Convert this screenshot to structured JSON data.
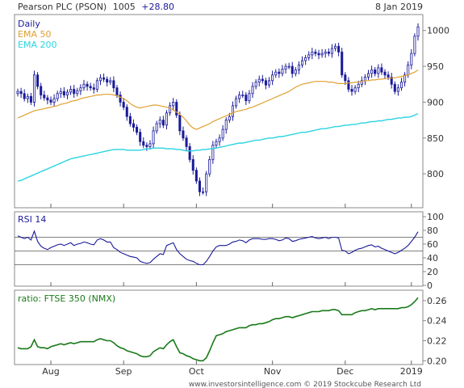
{
  "header": {
    "title": "Pearson PLC (PSON)",
    "price": "1005",
    "change": "+28.80",
    "date": "8 Jan 2019"
  },
  "footer": {
    "credit": "www.investorsintelligence.com  © 2019 Stockcube Research Ltd"
  },
  "colors": {
    "price": "#1a1a9a",
    "ema50": "#e0a030",
    "ema200": "#2ad4e0",
    "rsi": "#1a1a9a",
    "ratio": "#1a7a1a",
    "ratio_label": "#1a7a1a",
    "change": "#1a1a9a"
  },
  "chart_data": [
    {
      "type": "candlestick",
      "legend": [
        "Daily",
        "EMA 50",
        "EMA 200"
      ],
      "x_tick_labels": [
        "Aug",
        "Sep",
        "Oct",
        "Nov",
        "Dec",
        "2019"
      ],
      "x_tick_indices": [
        10,
        32,
        54,
        77,
        99,
        119
      ],
      "ylim": [
        755,
        1020
      ],
      "yticks": [
        800,
        850,
        900,
        950,
        1000
      ],
      "grid": false,
      "legend_position": "top-left",
      "close": [
        915,
        912,
        905,
        908,
        900,
        938,
        922,
        910,
        906,
        903,
        900,
        905,
        912,
        915,
        910,
        914,
        918,
        912,
        916,
        920,
        925,
        922,
        920,
        918,
        930,
        934,
        932,
        928,
        930,
        920,
        910,
        900,
        893,
        880,
        870,
        865,
        858,
        845,
        840,
        838,
        842,
        860,
        870,
        875,
        868,
        885,
        895,
        900,
        882,
        860,
        850,
        838,
        820,
        805,
        790,
        775,
        775,
        800,
        820,
        840,
        845,
        850,
        862,
        875,
        880,
        895,
        905,
        910,
        910,
        902,
        912,
        922,
        928,
        932,
        930,
        924,
        930,
        938,
        942,
        940,
        946,
        950,
        950,
        940,
        945,
        952,
        958,
        962,
        966,
        970,
        968,
        966,
        968,
        970,
        968,
        975,
        978,
        970,
        938,
        930,
        918,
        915,
        920,
        925,
        930,
        935,
        940,
        945,
        940,
        948,
        942,
        938,
        935,
        925,
        915,
        920,
        928,
        938,
        952,
        968,
        992,
        1005
      ],
      "ema50": [
        878,
        880,
        882,
        884,
        886,
        888,
        889,
        890,
        891,
        892,
        893,
        894,
        895,
        897,
        898,
        899,
        901,
        902,
        903,
        905,
        906,
        907,
        908,
        909,
        910,
        910,
        911,
        911,
        911,
        910,
        909,
        907,
        905,
        902,
        898,
        895,
        893,
        892,
        893,
        894,
        895,
        896,
        896,
        895,
        894,
        893,
        892,
        889,
        886,
        883,
        879,
        874,
        868,
        864,
        862,
        864,
        866,
        868,
        870,
        873,
        875,
        877,
        879,
        881,
        883,
        885,
        887,
        888,
        889,
        890,
        892,
        893,
        895,
        897,
        899,
        901,
        903,
        905,
        907,
        909,
        911,
        913,
        915,
        918,
        921,
        923,
        925,
        926,
        927,
        928,
        929,
        929,
        929,
        929,
        928,
        928,
        927,
        926,
        926,
        926,
        927,
        927,
        928,
        928,
        929,
        930,
        930,
        931,
        931,
        932,
        932,
        933,
        933,
        934,
        934,
        935,
        936,
        937,
        938,
        940,
        942,
        945
      ],
      "ema200": [
        790,
        791,
        793,
        795,
        797,
        799,
        801,
        803,
        805,
        807,
        809,
        811,
        813,
        815,
        817,
        819,
        821,
        822,
        823,
        824,
        825,
        826,
        827,
        828,
        829,
        830,
        831,
        832,
        833,
        834,
        834,
        834,
        834,
        833,
        833,
        833,
        833,
        833,
        834,
        835,
        835,
        836,
        836,
        836,
        836,
        835,
        835,
        835,
        834,
        834,
        833,
        832,
        832,
        832,
        833,
        833,
        834,
        834,
        835,
        835,
        836,
        837,
        838,
        839,
        840,
        841,
        842,
        843,
        843,
        844,
        845,
        846,
        847,
        847,
        848,
        849,
        850,
        850,
        851,
        852,
        852,
        853,
        854,
        855,
        856,
        857,
        858,
        858,
        859,
        860,
        861,
        862,
        863,
        863,
        864,
        865,
        866,
        866,
        867,
        868,
        868,
        869,
        869,
        870,
        871,
        871,
        872,
        873,
        873,
        874,
        874,
        875,
        876,
        876,
        877,
        878,
        878,
        879,
        879,
        880,
        882,
        884
      ]
    },
    {
      "type": "line",
      "title": "RSI 14",
      "ylim": [
        0,
        100
      ],
      "yticks": [
        0,
        20,
        40,
        60,
        80,
        100
      ],
      "reference_lines": [
        30,
        50,
        70
      ],
      "values": [
        72,
        70,
        68,
        70,
        66,
        79,
        64,
        57,
        54,
        52,
        55,
        57,
        59,
        60,
        58,
        60,
        62,
        58,
        60,
        61,
        63,
        62,
        60,
        59,
        66,
        68,
        66,
        63,
        63,
        55,
        52,
        48,
        46,
        44,
        42,
        41,
        40,
        35,
        33,
        32,
        33,
        38,
        42,
        46,
        45,
        58,
        60,
        62,
        52,
        46,
        42,
        38,
        36,
        35,
        32,
        30,
        30,
        35,
        42,
        50,
        56,
        58,
        58,
        58,
        60,
        63,
        64,
        66,
        65,
        62,
        66,
        68,
        68,
        68,
        67,
        67,
        68,
        68,
        67,
        65,
        66,
        69,
        68,
        64,
        65,
        67,
        68,
        69,
        70,
        71,
        69,
        68,
        69,
        70,
        68,
        70,
        70,
        69,
        51,
        50,
        46,
        48,
        51,
        53,
        54,
        56,
        58,
        59,
        56,
        57,
        54,
        52,
        50,
        48,
        46,
        48,
        51,
        54,
        58,
        64,
        70,
        78
      ]
    },
    {
      "type": "line",
      "title": "ratio: FTSE 350 (NMX)",
      "ylim": [
        0.197,
        0.268
      ],
      "yticks": [
        0.2,
        0.22,
        0.24,
        0.26
      ],
      "values": [
        0.213,
        0.212,
        0.212,
        0.212,
        0.214,
        0.221,
        0.214,
        0.213,
        0.213,
        0.212,
        0.214,
        0.215,
        0.216,
        0.217,
        0.216,
        0.217,
        0.218,
        0.217,
        0.218,
        0.219,
        0.219,
        0.219,
        0.219,
        0.219,
        0.221,
        0.222,
        0.221,
        0.22,
        0.22,
        0.218,
        0.215,
        0.213,
        0.212,
        0.21,
        0.209,
        0.208,
        0.207,
        0.205,
        0.204,
        0.204,
        0.205,
        0.209,
        0.211,
        0.213,
        0.212,
        0.216,
        0.219,
        0.221,
        0.214,
        0.208,
        0.207,
        0.205,
        0.204,
        0.202,
        0.201,
        0.2,
        0.2,
        0.203,
        0.21,
        0.218,
        0.225,
        0.226,
        0.227,
        0.229,
        0.23,
        0.231,
        0.232,
        0.233,
        0.233,
        0.233,
        0.235,
        0.236,
        0.236,
        0.237,
        0.237,
        0.238,
        0.239,
        0.241,
        0.242,
        0.242,
        0.243,
        0.244,
        0.244,
        0.243,
        0.244,
        0.245,
        0.246,
        0.247,
        0.248,
        0.249,
        0.249,
        0.249,
        0.25,
        0.25,
        0.25,
        0.251,
        0.251,
        0.25,
        0.246,
        0.246,
        0.246,
        0.246,
        0.248,
        0.249,
        0.25,
        0.25,
        0.251,
        0.252,
        0.251,
        0.252,
        0.252,
        0.252,
        0.252,
        0.252,
        0.252,
        0.252,
        0.253,
        0.253,
        0.254,
        0.256,
        0.259,
        0.263
      ]
    }
  ]
}
